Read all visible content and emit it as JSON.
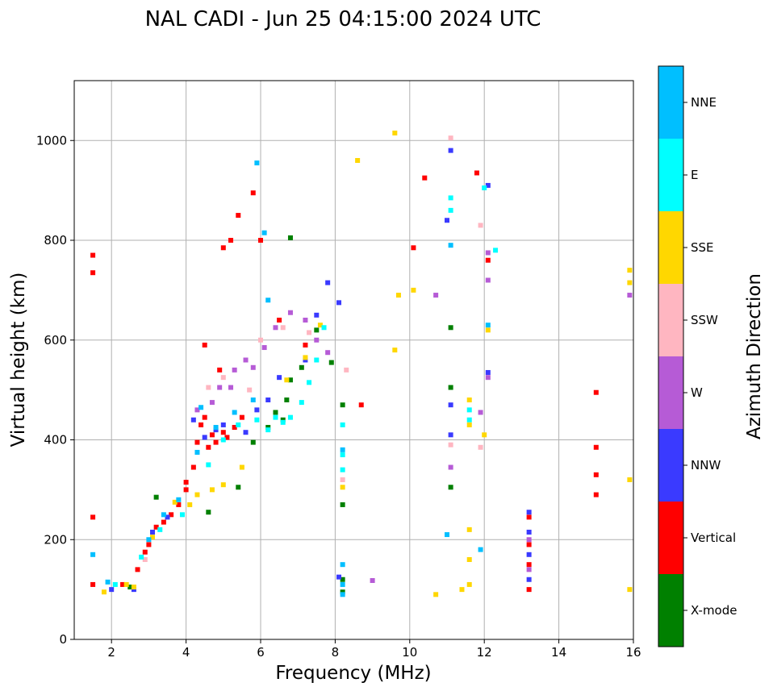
{
  "chart_data": {
    "type": "scatter",
    "title": "NAL CADI - Jun 25 04:15:00 2024 UTC",
    "xlabel": "Frequency (MHz)",
    "ylabel": "Virtual height (km)",
    "xlim": [
      1,
      16
    ],
    "ylim": [
      0,
      1120
    ],
    "xticks": [
      2,
      4,
      6,
      8,
      10,
      12,
      14,
      16
    ],
    "yticks": [
      0,
      200,
      400,
      600,
      800,
      1000
    ],
    "grid": true,
    "colorbar": {
      "label": "Azimuth Direction",
      "categories": [
        {
          "name": "X-mode",
          "color": "#008000"
        },
        {
          "name": "Vertical",
          "color": "#ff0000"
        },
        {
          "name": "NNW",
          "color": "#3a3aff"
        },
        {
          "name": "W",
          "color": "#b65bd6"
        },
        {
          "name": "SSW",
          "color": "#ffb6c1"
        },
        {
          "name": "SSE",
          "color": "#ffd700"
        },
        {
          "name": "E",
          "color": "#00ffff"
        },
        {
          "name": "NNE",
          "color": "#00bfff"
        }
      ]
    },
    "series": [
      {
        "name": "X-mode",
        "color": "#008000",
        "points": [
          [
            2.5,
            105
          ],
          [
            3.2,
            285
          ],
          [
            4.6,
            255
          ],
          [
            5.4,
            305
          ],
          [
            5.8,
            395
          ],
          [
            6.2,
            425
          ],
          [
            6.4,
            455
          ],
          [
            6.6,
            440
          ],
          [
            6.7,
            480
          ],
          [
            6.8,
            520
          ],
          [
            7.1,
            545
          ],
          [
            7.5,
            620
          ],
          [
            7.9,
            555
          ],
          [
            8.2,
            95
          ],
          [
            8.2,
            120
          ],
          [
            8.2,
            270
          ],
          [
            8.2,
            470
          ],
          [
            11.1,
            305
          ],
          [
            11.1,
            505
          ],
          [
            11.1,
            625
          ],
          [
            6.8,
            805
          ]
        ]
      },
      {
        "name": "Vertical",
        "color": "#ff0000",
        "points": [
          [
            1.5,
            110
          ],
          [
            1.5,
            245
          ],
          [
            1.5,
            735
          ],
          [
            1.5,
            770
          ],
          [
            2.3,
            110
          ],
          [
            2.7,
            140
          ],
          [
            2.9,
            175
          ],
          [
            3.0,
            190
          ],
          [
            3.2,
            225
          ],
          [
            3.4,
            235
          ],
          [
            3.6,
            250
          ],
          [
            3.8,
            270
          ],
          [
            4.0,
            300
          ],
          [
            4.0,
            315
          ],
          [
            4.2,
            345
          ],
          [
            4.3,
            395
          ],
          [
            4.4,
            430
          ],
          [
            4.5,
            445
          ],
          [
            4.6,
            385
          ],
          [
            4.7,
            410
          ],
          [
            4.8,
            395
          ],
          [
            5.0,
            415
          ],
          [
            5.1,
            405
          ],
          [
            5.3,
            425
          ],
          [
            5.5,
            445
          ],
          [
            4.9,
            540
          ],
          [
            4.5,
            590
          ],
          [
            5.0,
            785
          ],
          [
            5.2,
            800
          ],
          [
            5.4,
            850
          ],
          [
            5.8,
            895
          ],
          [
            6.0,
            800
          ],
          [
            6.5,
            640
          ],
          [
            7.2,
            590
          ],
          [
            8.7,
            470
          ],
          [
            10.1,
            785
          ],
          [
            10.4,
            925
          ],
          [
            11.8,
            935
          ],
          [
            12.1,
            760
          ],
          [
            13.2,
            100
          ],
          [
            13.2,
            150
          ],
          [
            13.2,
            190
          ],
          [
            13.2,
            245
          ],
          [
            15.0,
            290
          ],
          [
            15.0,
            330
          ],
          [
            15.0,
            385
          ],
          [
            15.0,
            495
          ]
        ]
      },
      {
        "name": "NNW",
        "color": "#3a3aff",
        "points": [
          [
            2.0,
            100
          ],
          [
            2.6,
            100
          ],
          [
            3.1,
            215
          ],
          [
            3.5,
            245
          ],
          [
            4.2,
            440
          ],
          [
            4.5,
            405
          ],
          [
            4.8,
            420
          ],
          [
            5.0,
            430
          ],
          [
            5.6,
            415
          ],
          [
            5.9,
            460
          ],
          [
            6.2,
            480
          ],
          [
            6.5,
            525
          ],
          [
            7.2,
            560
          ],
          [
            7.5,
            650
          ],
          [
            7.8,
            715
          ],
          [
            8.1,
            675
          ],
          [
            8.1,
            125
          ],
          [
            11.1,
            980
          ],
          [
            11.1,
            470
          ],
          [
            11.1,
            410
          ],
          [
            11.0,
            840
          ],
          [
            12.1,
            535
          ],
          [
            12.1,
            910
          ],
          [
            13.2,
            120
          ],
          [
            13.2,
            170
          ],
          [
            13.2,
            215
          ],
          [
            13.2,
            255
          ]
        ]
      },
      {
        "name": "W",
        "color": "#b65bd6",
        "points": [
          [
            4.3,
            460
          ],
          [
            4.7,
            475
          ],
          [
            4.9,
            505
          ],
          [
            5.2,
            505
          ],
          [
            5.3,
            540
          ],
          [
            5.6,
            560
          ],
          [
            5.8,
            545
          ],
          [
            6.1,
            585
          ],
          [
            6.4,
            625
          ],
          [
            6.8,
            655
          ],
          [
            7.2,
            640
          ],
          [
            7.5,
            600
          ],
          [
            7.8,
            575
          ],
          [
            9.0,
            118
          ],
          [
            10.7,
            690
          ],
          [
            11.1,
            345
          ],
          [
            11.9,
            455
          ],
          [
            12.1,
            525
          ],
          [
            12.1,
            720
          ],
          [
            12.1,
            775
          ],
          [
            13.2,
            140
          ],
          [
            13.2,
            200
          ],
          [
            15.9,
            690
          ]
        ]
      },
      {
        "name": "SSW",
        "color": "#ffb6c1",
        "points": [
          [
            2.9,
            160
          ],
          [
            4.6,
            505
          ],
          [
            5.0,
            525
          ],
          [
            5.7,
            500
          ],
          [
            6.0,
            600
          ],
          [
            6.6,
            625
          ],
          [
            7.3,
            615
          ],
          [
            8.2,
            320
          ],
          [
            8.3,
            540
          ],
          [
            11.1,
            390
          ],
          [
            11.1,
            1005
          ],
          [
            11.9,
            830
          ],
          [
            11.9,
            385
          ]
        ]
      },
      {
        "name": "SSE",
        "color": "#ffd700",
        "points": [
          [
            1.8,
            95
          ],
          [
            2.4,
            110
          ],
          [
            2.6,
            105
          ],
          [
            3.1,
            205
          ],
          [
            3.7,
            275
          ],
          [
            4.1,
            270
          ],
          [
            4.3,
            290
          ],
          [
            4.7,
            300
          ],
          [
            5.0,
            310
          ],
          [
            5.5,
            345
          ],
          [
            6.7,
            520
          ],
          [
            7.2,
            565
          ],
          [
            7.6,
            630
          ],
          [
            8.2,
            305
          ],
          [
            8.6,
            960
          ],
          [
            9.6,
            1015
          ],
          [
            9.6,
            580
          ],
          [
            9.7,
            690
          ],
          [
            10.1,
            700
          ],
          [
            10.7,
            90
          ],
          [
            11.4,
            100
          ],
          [
            11.6,
            110
          ],
          [
            11.6,
            160
          ],
          [
            11.6,
            220
          ],
          [
            11.6,
            430
          ],
          [
            11.6,
            480
          ],
          [
            12.0,
            410
          ],
          [
            12.1,
            620
          ],
          [
            15.9,
            715
          ],
          [
            15.9,
            740
          ],
          [
            15.9,
            320
          ],
          [
            15.9,
            100
          ]
        ]
      },
      {
        "name": "E",
        "color": "#00ffff",
        "points": [
          [
            2.1,
            110
          ],
          [
            2.8,
            165
          ],
          [
            3.3,
            220
          ],
          [
            3.9,
            250
          ],
          [
            4.6,
            350
          ],
          [
            5.0,
            400
          ],
          [
            5.4,
            430
          ],
          [
            5.9,
            440
          ],
          [
            6.2,
            420
          ],
          [
            6.4,
            445
          ],
          [
            6.6,
            435
          ],
          [
            6.8,
            445
          ],
          [
            7.1,
            475
          ],
          [
            7.3,
            515
          ],
          [
            7.5,
            560
          ],
          [
            7.7,
            625
          ],
          [
            8.2,
            340
          ],
          [
            8.2,
            370
          ],
          [
            8.2,
            430
          ],
          [
            11.1,
            885
          ],
          [
            11.1,
            860
          ],
          [
            11.6,
            440
          ],
          [
            11.6,
            460
          ],
          [
            12.0,
            905
          ],
          [
            12.3,
            780
          ]
        ]
      },
      {
        "name": "NNE",
        "color": "#00bfff",
        "points": [
          [
            1.5,
            170
          ],
          [
            1.9,
            115
          ],
          [
            3.0,
            200
          ],
          [
            3.4,
            250
          ],
          [
            3.8,
            280
          ],
          [
            4.3,
            375
          ],
          [
            4.4,
            465
          ],
          [
            4.8,
            425
          ],
          [
            5.3,
            455
          ],
          [
            5.8,
            480
          ],
          [
            6.2,
            680
          ],
          [
            5.9,
            955
          ],
          [
            6.1,
            815
          ],
          [
            8.2,
            90
          ],
          [
            8.2,
            110
          ],
          [
            8.2,
            150
          ],
          [
            8.2,
            380
          ],
          [
            11.0,
            210
          ],
          [
            11.1,
            790
          ],
          [
            11.9,
            180
          ],
          [
            12.1,
            630
          ]
        ]
      }
    ]
  }
}
